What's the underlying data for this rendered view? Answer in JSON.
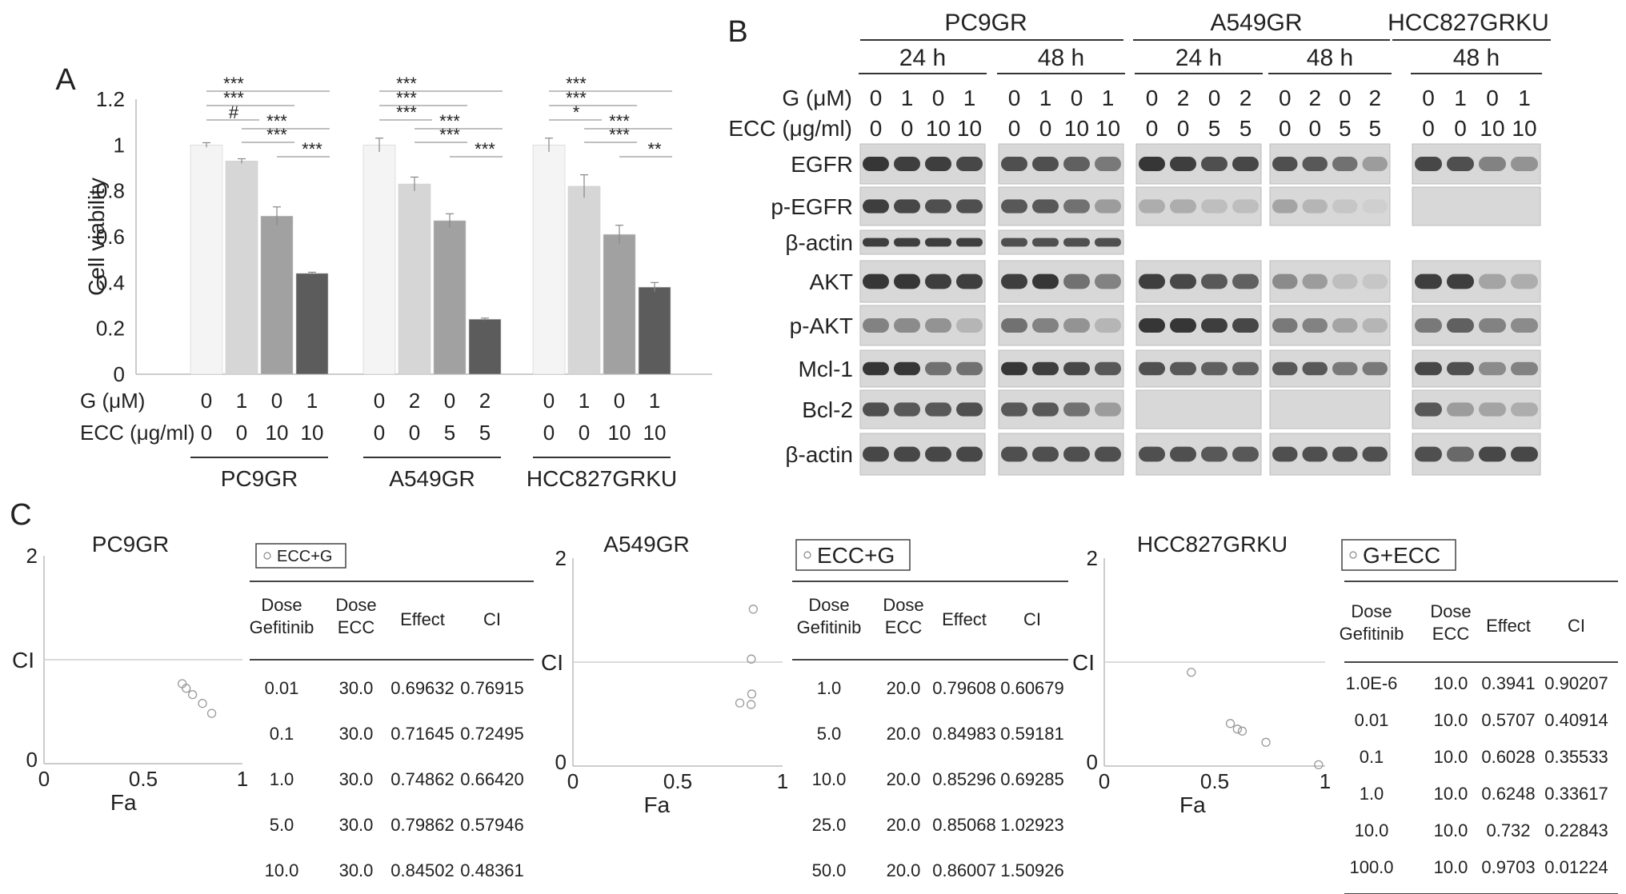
{
  "panel_labels": [
    "A",
    "B",
    "C"
  ],
  "chart_data": [
    {
      "type": "bar",
      "panel": "A",
      "ylabel": "Cell viability",
      "ylim": [
        0,
        1.2
      ],
      "yticks": [
        "0",
        "0.2",
        "0.4",
        "0.6",
        "0.8",
        "1",
        "1.2"
      ],
      "row_labels": [
        "G (μM)",
        "ECC (μg/ml)"
      ],
      "groups": [
        {
          "name": "PC9GR",
          "G": [
            "0",
            "1",
            "0",
            "1"
          ],
          "ECC": [
            "0",
            "0",
            "10",
            "10"
          ],
          "values": [
            1.0,
            0.93,
            0.69,
            0.44
          ],
          "errors": [
            0.01,
            0.01,
            0.04,
            0.005
          ],
          "sig": [
            "***",
            "***",
            "#",
            "***",
            "***",
            "***"
          ]
        },
        {
          "name": "A549GR",
          "G": [
            "0",
            "2",
            "0",
            "2"
          ],
          "ECC": [
            "0",
            "0",
            "5",
            "5"
          ],
          "values": [
            1.0,
            0.83,
            0.67,
            0.24
          ],
          "errors": [
            0.03,
            0.03,
            0.03,
            0.005
          ],
          "sig": [
            "***",
            "***",
            "***",
            "***",
            "***",
            "***"
          ]
        },
        {
          "name": "HCC827GRKU",
          "G": [
            "0",
            "1",
            "0",
            "1"
          ],
          "ECC": [
            "0",
            "0",
            "10",
            "10"
          ],
          "values": [
            1.0,
            0.82,
            0.61,
            0.38
          ],
          "errors": [
            0.03,
            0.05,
            0.04,
            0.02
          ],
          "sig": [
            "***",
            "***",
            "*",
            "***",
            "***",
            "**"
          ]
        }
      ],
      "bar_colors": [
        "#f4f4f4",
        "#d6d6d6",
        "#a1a1a1",
        "#5c5c5c"
      ]
    },
    {
      "type": "scatter",
      "panel": "C",
      "title": "PC9GR",
      "xlabel": "Fa",
      "ylabel": "CI",
      "xlim": [
        0,
        1
      ],
      "ylim": [
        0,
        2
      ],
      "xticks": [
        "0",
        "0.5",
        "1"
      ],
      "yticks": [
        "0",
        "2"
      ],
      "points": [
        [
          0.69632,
          0.76915
        ],
        [
          0.71645,
          0.72495
        ],
        [
          0.74862,
          0.6642
        ],
        [
          0.79862,
          0.57946
        ],
        [
          0.84502,
          0.48361
        ]
      ]
    },
    {
      "type": "scatter",
      "panel": "C",
      "title": "A549GR",
      "xlabel": "Fa",
      "ylabel": "CI",
      "xlim": [
        0,
        1
      ],
      "ylim": [
        0,
        2
      ],
      "xticks": [
        "0",
        "0.5",
        "1"
      ],
      "yticks": [
        "0",
        "2"
      ],
      "points": [
        [
          0.79608,
          0.60679
        ],
        [
          0.84983,
          0.59181
        ],
        [
          0.85296,
          0.69285
        ],
        [
          0.85068,
          1.02923
        ],
        [
          0.86007,
          1.50926
        ]
      ]
    },
    {
      "type": "scatter",
      "panel": "C",
      "title": "HCC827GRKU",
      "xlabel": "Fa",
      "ylabel": "CI",
      "xlim": [
        0,
        1
      ],
      "ylim": [
        0,
        2
      ],
      "xticks": [
        "0",
        "0.5",
        "1"
      ],
      "yticks": [
        "0",
        "2"
      ],
      "points": [
        [
          0.3941,
          0.90207
        ],
        [
          0.5707,
          0.40914
        ],
        [
          0.6028,
          0.35533
        ],
        [
          0.6248,
          0.33617
        ],
        [
          0.732,
          0.22843
        ],
        [
          0.9703,
          0.01224
        ]
      ]
    },
    {
      "type": "table",
      "panel": "C",
      "legend": "ECC+G",
      "columns": [
        "Dose Gefitinib",
        "Dose ECC",
        "Effect",
        "CI"
      ],
      "rows": [
        [
          "0.01",
          "30.0",
          "0.69632",
          "0.76915"
        ],
        [
          "0.1",
          "30.0",
          "0.71645",
          "0.72495"
        ],
        [
          "1.0",
          "30.0",
          "0.74862",
          "0.66420"
        ],
        [
          "5.0",
          "30.0",
          "0.79862",
          "0.57946"
        ],
        [
          "10.0",
          "30.0",
          "0.84502",
          "0.48361"
        ]
      ]
    },
    {
      "type": "table",
      "panel": "C",
      "legend": "ECC+G",
      "columns": [
        "Dose Gefitinib",
        "Dose ECC",
        "Effect",
        "CI"
      ],
      "rows": [
        [
          "1.0",
          "20.0",
          "0.79608",
          "0.60679"
        ],
        [
          "5.0",
          "20.0",
          "0.84983",
          "0.59181"
        ],
        [
          "10.0",
          "20.0",
          "0.85296",
          "0.69285"
        ],
        [
          "25.0",
          "20.0",
          "0.85068",
          "1.02923"
        ],
        [
          "50.0",
          "20.0",
          "0.86007",
          "1.50926"
        ]
      ]
    },
    {
      "type": "table",
      "panel": "C",
      "legend": "G+ECC",
      "columns": [
        "Dose Gefitinib",
        "Dose ECC",
        "Effect",
        "CI"
      ],
      "rows": [
        [
          "1.0E-6",
          "10.0",
          "0.3941",
          "0.90207"
        ],
        [
          "0.01",
          "10.0",
          "0.5707",
          "0.40914"
        ],
        [
          "0.1",
          "10.0",
          "0.6028",
          "0.35533"
        ],
        [
          "1.0",
          "10.0",
          "0.6248",
          "0.33617"
        ],
        [
          "10.0",
          "10.0",
          "0.732",
          "0.22843"
        ],
        [
          "100.0",
          "10.0",
          "0.9703",
          "0.01224"
        ]
      ]
    }
  ],
  "blot": {
    "cell_lines": [
      "PC9GR",
      "A549GR",
      "HCC827GRKU"
    ],
    "times": [
      "24 h",
      "48 h",
      "24 h",
      "48 h",
      "48 h"
    ],
    "row_labels": [
      "G (μM)",
      "ECC (μg/ml)"
    ],
    "lanes": [
      {
        "G": [
          "0",
          "1",
          "0",
          "1"
        ],
        "ECC": [
          "0",
          "0",
          "10",
          "10"
        ]
      },
      {
        "G": [
          "0",
          "1",
          "0",
          "1"
        ],
        "ECC": [
          "0",
          "0",
          "10",
          "10"
        ]
      },
      {
        "G": [
          "0",
          "2",
          "0",
          "2"
        ],
        "ECC": [
          "0",
          "0",
          "5",
          "5"
        ]
      },
      {
        "G": [
          "0",
          "2",
          "0",
          "2"
        ],
        "ECC": [
          "0",
          "0",
          "5",
          "5"
        ]
      },
      {
        "G": [
          "0",
          "1",
          "0",
          "1"
        ],
        "ECC": [
          "0",
          "0",
          "10",
          "10"
        ]
      }
    ],
    "proteins": [
      "EGFR",
      "p-EGFR",
      "β-actin",
      "AKT",
      "p-AKT",
      "Mcl-1",
      "Bcl-2",
      "β-actin"
    ],
    "intensity": {
      "EGFR": [
        [
          0.95,
          0.9,
          0.9,
          0.85
        ],
        [
          0.8,
          0.8,
          0.7,
          0.55
        ],
        [
          0.95,
          0.9,
          0.8,
          0.85
        ],
        [
          0.8,
          0.75,
          0.6,
          0.35
        ],
        [
          0.85,
          0.8,
          0.5,
          0.4
        ]
      ],
      "p-EGFR": [
        [
          0.9,
          0.85,
          0.8,
          0.8
        ],
        [
          0.75,
          0.75,
          0.6,
          0.35
        ],
        [
          0.25,
          0.25,
          0.15,
          0.15
        ],
        [
          0.3,
          0.2,
          0.1,
          0.05
        ],
        [
          0,
          0,
          0,
          0
        ]
      ],
      "b-actin-1": [
        [
          0.9,
          0.9,
          0.9,
          0.9
        ],
        [
          0.8,
          0.8,
          0.8,
          0.8
        ],
        null,
        null,
        null
      ],
      "AKT": [
        [
          0.95,
          0.95,
          0.9,
          0.9
        ],
        [
          0.9,
          0.95,
          0.6,
          0.5
        ],
        [
          0.9,
          0.85,
          0.75,
          0.7
        ],
        [
          0.45,
          0.35,
          0.15,
          0.1
        ],
        [
          0.9,
          0.9,
          0.3,
          0.25
        ]
      ],
      "p-AKT": [
        [
          0.5,
          0.45,
          0.4,
          0.2
        ],
        [
          0.6,
          0.5,
          0.4,
          0.2
        ],
        [
          0.95,
          0.95,
          0.9,
          0.85
        ],
        [
          0.55,
          0.5,
          0.3,
          0.2
        ],
        [
          0.55,
          0.7,
          0.5,
          0.45
        ]
      ],
      "Mcl-1": [
        [
          0.95,
          0.95,
          0.6,
          0.6
        ],
        [
          0.95,
          0.9,
          0.85,
          0.75
        ],
        [
          0.8,
          0.75,
          0.7,
          0.7
        ],
        [
          0.75,
          0.75,
          0.55,
          0.55
        ],
        [
          0.85,
          0.8,
          0.45,
          0.5
        ]
      ],
      "Bcl-2": [
        [
          0.8,
          0.75,
          0.75,
          0.8
        ],
        [
          0.75,
          0.75,
          0.6,
          0.35
        ],
        [
          0,
          0,
          0,
          0
        ],
        [
          0,
          0,
          0,
          0
        ],
        [
          0.75,
          0.35,
          0.3,
          0.25
        ]
      ],
      "b-actin-2": [
        [
          0.85,
          0.85,
          0.85,
          0.85
        ],
        [
          0.8,
          0.8,
          0.8,
          0.8
        ],
        [
          0.8,
          0.8,
          0.75,
          0.75
        ],
        [
          0.8,
          0.8,
          0.8,
          0.8
        ],
        [
          0.8,
          0.65,
          0.85,
          0.85
        ]
      ]
    }
  }
}
